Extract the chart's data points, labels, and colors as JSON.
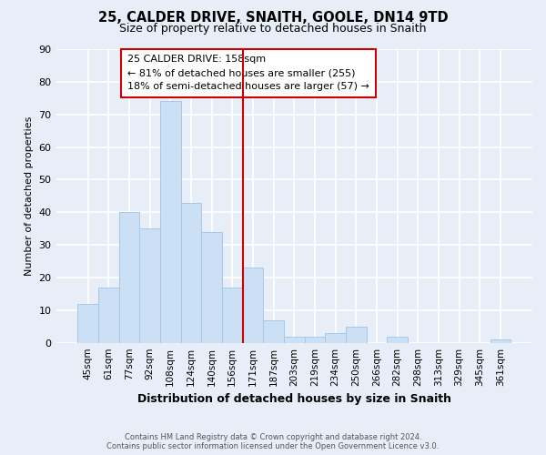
{
  "title": "25, CALDER DRIVE, SNAITH, GOOLE, DN14 9TD",
  "subtitle": "Size of property relative to detached houses in Snaith",
  "xlabel": "Distribution of detached houses by size in Snaith",
  "ylabel": "Number of detached properties",
  "bar_labels": [
    "45sqm",
    "61sqm",
    "77sqm",
    "92sqm",
    "108sqm",
    "124sqm",
    "140sqm",
    "156sqm",
    "171sqm",
    "187sqm",
    "203sqm",
    "219sqm",
    "234sqm",
    "250sqm",
    "266sqm",
    "282sqm",
    "298sqm",
    "313sqm",
    "329sqm",
    "345sqm",
    "361sqm"
  ],
  "bar_values": [
    12,
    17,
    40,
    35,
    74,
    43,
    34,
    17,
    23,
    7,
    2,
    2,
    3,
    5,
    0,
    2,
    0,
    0,
    0,
    0,
    1
  ],
  "bar_color": "#cce0f5",
  "bar_edge_color": "#a8c8e8",
  "vline_index": 7,
  "vline_color": "#cc0000",
  "ylim": [
    0,
    90
  ],
  "yticks": [
    0,
    10,
    20,
    30,
    40,
    50,
    60,
    70,
    80,
    90
  ],
  "annotation_title": "25 CALDER DRIVE: 158sqm",
  "annotation_line1": "← 81% of detached houses are smaller (255)",
  "annotation_line2": "18% of semi-detached houses are larger (57) →",
  "annotation_box_facecolor": "#ffffff",
  "annotation_box_edgecolor": "#cc0000",
  "footer1": "Contains HM Land Registry data © Crown copyright and database right 2024.",
  "footer2": "Contains public sector information licensed under the Open Government Licence v3.0.",
  "background_color": "#e8eef8",
  "plot_bg_color": "#e8eef8",
  "grid_color": "#ffffff"
}
